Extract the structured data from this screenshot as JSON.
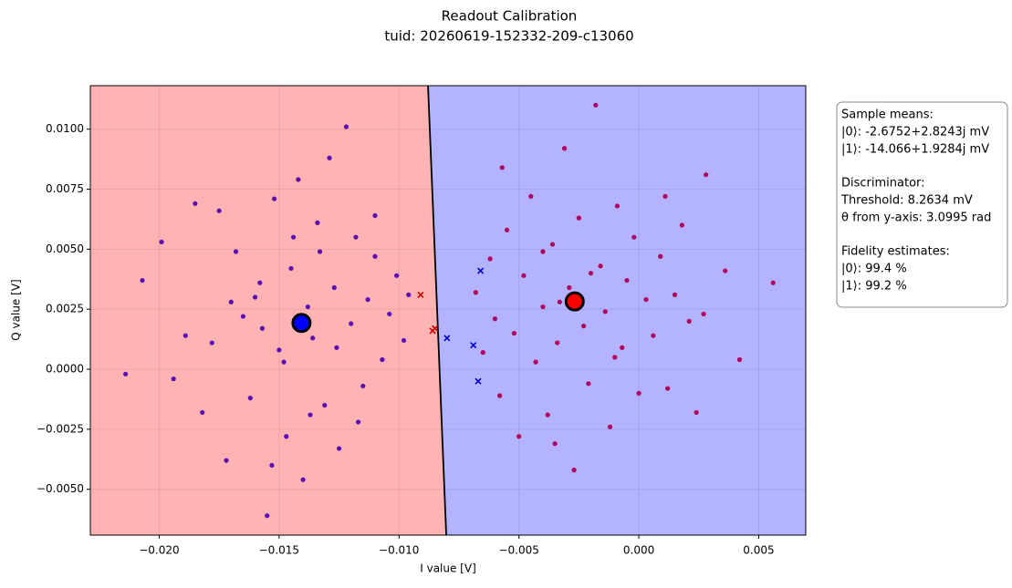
{
  "chart_data": {
    "type": "scatter",
    "title": "Readout Calibration",
    "subtitle": "tuid: 20260619-152332-209-c13060",
    "xlabel": "I value [V]",
    "ylabel": "Q value [V]",
    "xlim": [
      -0.02287,
      0.00696
    ],
    "ylim": [
      -0.00691,
      0.01181
    ],
    "xticks": [
      {
        "value": -0.02,
        "label": "−0.020"
      },
      {
        "value": -0.015,
        "label": "−0.015"
      },
      {
        "value": -0.01,
        "label": "−0.010"
      },
      {
        "value": -0.005,
        "label": "−0.005"
      },
      {
        "value": 0,
        "label": "0.000"
      },
      {
        "value": 0.005,
        "label": "0.005"
      }
    ],
    "yticks": [
      {
        "value": -0.005,
        "label": "−0.0050"
      },
      {
        "value": -0.0025,
        "label": "−0.0025"
      },
      {
        "value": 0,
        "label": "0.0000"
      },
      {
        "value": 0.0025,
        "label": "0.0025"
      },
      {
        "value": 0.005,
        "label": "0.0050"
      },
      {
        "value": 0.0075,
        "label": "0.0075"
      },
      {
        "value": 0.01,
        "label": "0.0100"
      }
    ],
    "grid": true,
    "regions": {
      "left_color": "#ffb3b3",
      "right_color": "#b3b3ff"
    },
    "boundary_x": [
      -0.00803,
      -0.00879
    ],
    "series": [
      {
        "color": "#5a0cb4",
        "marker": "dot",
        "x": [
          -0.0214,
          -0.0207,
          -0.0199,
          -0.0194,
          -0.0185,
          -0.0182,
          -0.0178,
          -0.0175,
          -0.0172,
          -0.0168,
          -0.0165,
          -0.0162,
          -0.0158,
          -0.0155,
          -0.0152,
          -0.015,
          -0.0147,
          -0.0145,
          -0.0142,
          -0.014,
          -0.0138,
          -0.0136,
          -0.0134,
          -0.0131,
          -0.0129,
          -0.0127,
          -0.0125,
          -0.0122,
          -0.012,
          -0.0118,
          -0.0115,
          -0.0113,
          -0.011,
          -0.0107,
          -0.0104,
          -0.0101,
          -0.0098,
          -0.0096,
          -0.0157,
          -0.0148,
          -0.0133,
          -0.0126,
          -0.0144,
          -0.016,
          -0.0117,
          -0.0137,
          -0.017,
          -0.0189,
          -0.011,
          -0.0153
        ],
        "y": [
          -0.0002,
          0.0037,
          0.0053,
          -0.0004,
          0.0069,
          -0.0018,
          0.0011,
          0.0066,
          -0.0038,
          0.0049,
          0.0022,
          -0.0012,
          0.0036,
          -0.0061,
          0.0071,
          0.0008,
          -0.0028,
          0.0042,
          0.0079,
          -0.0046,
          0.0026,
          0.0013,
          0.0061,
          -0.0015,
          0.0088,
          0.0034,
          -0.0033,
          0.0101,
          0.0019,
          0.0055,
          -0.0007,
          0.0029,
          0.0047,
          0.0004,
          0.0023,
          0.0039,
          0.0012,
          0.0031,
          0.0017,
          0.0003,
          0.0049,
          0.0009,
          0.0055,
          0.003,
          -0.0022,
          -0.0019,
          0.0028,
          0.0014,
          0.0064,
          -0.004
        ]
      },
      {
        "color": "#b0005a",
        "marker": "dot",
        "x": [
          -0.0068,
          -0.0065,
          -0.0062,
          -0.006,
          -0.0058,
          -0.0055,
          -0.0052,
          -0.005,
          -0.0048,
          -0.0045,
          -0.0043,
          -0.004,
          -0.0038,
          -0.0036,
          -0.0034,
          -0.0031,
          -0.0029,
          -0.0027,
          -0.0025,
          -0.0023,
          -0.0021,
          -0.0018,
          -0.0016,
          -0.0014,
          -0.0012,
          -0.0009,
          -0.0007,
          -0.0005,
          -0.0002,
          0,
          0.0003,
          0.0006,
          0.0009,
          0.0012,
          0.0015,
          0.0018,
          0.0021,
          0.0024,
          0.0027,
          0.0028,
          0.0036,
          0.0042,
          0.0056,
          -0.0033,
          -0.002,
          -0.004,
          -0.001,
          -0.0057,
          -0.0035,
          0.0011
        ],
        "y": [
          0.0032,
          0.0007,
          0.0046,
          0.0021,
          -0.0011,
          0.0058,
          0.0015,
          -0.0028,
          0.0039,
          0.0072,
          0.0003,
          0.0026,
          -0.0019,
          0.0052,
          0.0011,
          0.0092,
          0.0034,
          -0.0042,
          0.0063,
          0.0018,
          -0.0006,
          0.011,
          0.0043,
          0.0024,
          -0.0024,
          0.0068,
          0.0009,
          0.0037,
          0.0055,
          -0.001,
          0.0029,
          0.0014,
          0.0047,
          -0.0008,
          0.0031,
          0.006,
          0.002,
          -0.0018,
          0.0023,
          0.0081,
          0.0041,
          0.0004,
          0.0036,
          0.0028,
          0.004,
          0.0049,
          0.0005,
          0.0084,
          -0.0031,
          0.0072
        ]
      },
      {
        "color": "#cc0000",
        "marker": "cross",
        "x": [
          -0.0091,
          -0.0086,
          -0.0085
        ],
        "y": [
          0.0031,
          0.0016,
          0.0017
        ]
      },
      {
        "color": "#0000cc",
        "marker": "cross",
        "x": [
          -0.008,
          -0.0069,
          -0.0066,
          -0.0067
        ],
        "y": [
          0.0013,
          0.001,
          0.0041,
          -0.0005
        ]
      },
      {
        "color": "#ff0000",
        "marker": "mean",
        "x": [
          -0.0026752
        ],
        "y": [
          0.0028243
        ]
      },
      {
        "color": "#0000ff",
        "marker": "mean",
        "x": [
          -0.014066
        ],
        "y": [
          0.0019284
        ]
      }
    ],
    "annotation": [
      "Sample means:",
      "|0⟩: -2.6752+2.8243j mV",
      "|1⟩: -14.066+1.9284j mV",
      "Discriminator:",
      "Threshold: 8.2634 mV",
      "θ from y-axis: 3.0995 rad",
      "Fidelity estimates:",
      "|0⟩: 99.4 %",
      "|1⟩: 99.2 %"
    ]
  }
}
